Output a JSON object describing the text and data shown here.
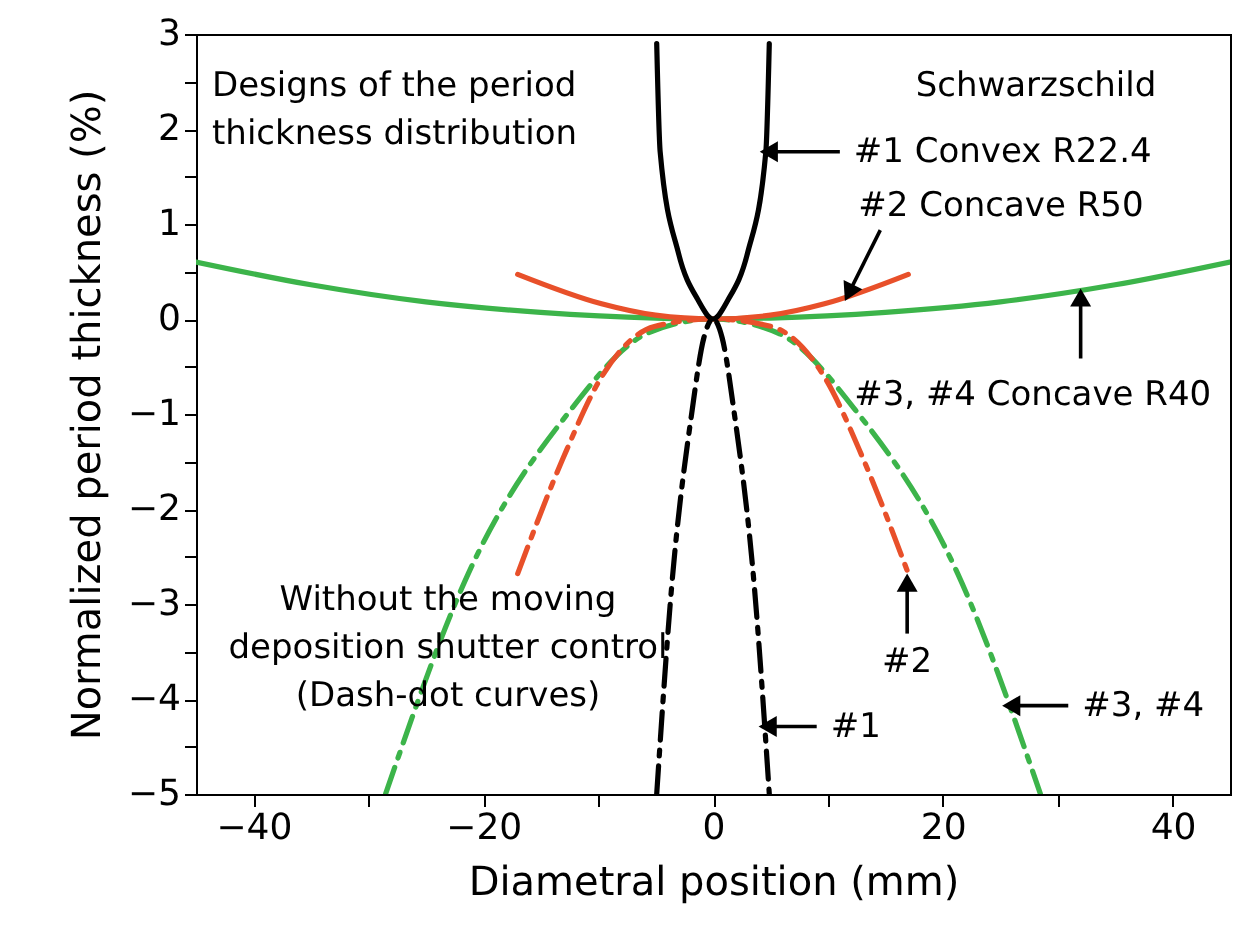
{
  "chart_data": {
    "type": "line",
    "xlabel": "Diametral position (mm)",
    "ylabel": "Normalized period thickness (%)",
    "xlim": [
      -45,
      45
    ],
    "ylim": [
      -5,
      3
    ],
    "xticks": [
      -40,
      {
        "value": -30,
        "label": null
      },
      -20,
      {
        "value": -10,
        "label": null
      },
      0,
      {
        "value": 10,
        "label": null
      },
      20,
      {
        "value": 30,
        "label": null
      },
      40
    ],
    "yticks": [
      -5,
      {
        "value": -4.5,
        "label": null
      },
      -4,
      {
        "value": -3.5,
        "label": null
      },
      -3,
      {
        "value": -2.5,
        "label": null
      },
      -2,
      {
        "value": -1.5,
        "label": null
      },
      -1,
      {
        "value": -0.5,
        "label": null
      },
      0,
      {
        "value": 0.5,
        "label": null
      },
      1,
      {
        "value": 1.5,
        "label": null
      },
      2,
      {
        "value": 2.5,
        "label": null
      },
      3
    ],
    "grid": false,
    "series": [
      {
        "color": "#3cb44a",
        "line_style": "solid",
        "x": [
          -45,
          -35,
          -25,
          -15,
          -5,
          0,
          5,
          15,
          25,
          35,
          45
        ],
        "values": [
          0.6,
          0.36,
          0.18,
          0.07,
          0.01,
          0,
          0.01,
          0.07,
          0.18,
          0.36,
          0.6
        ]
      },
      {
        "color": "#3cb44a",
        "line_style": "dashdot",
        "x": [
          -28.5,
          -21.3,
          -12.6,
          -5.7,
          0,
          5.7,
          12.6,
          21.3,
          28.5
        ],
        "values": [
          -5,
          -2.68,
          -0.99,
          -0.15,
          0,
          -0.15,
          -0.99,
          -2.68,
          -5
        ]
      },
      {
        "color": "#e8502a",
        "line_style": "solid",
        "x": [
          -17,
          -9.7,
          -5,
          0,
          5,
          9.7,
          17
        ],
        "values": [
          0.47,
          0.16,
          0.04,
          0,
          0.04,
          0.16,
          0.47
        ]
      },
      {
        "color": "#e8502a",
        "line_style": "dashdot",
        "x": [
          -17,
          -13.1,
          -9.7,
          -5.1,
          0,
          5.1,
          9.7,
          13.1,
          17
        ],
        "values": [
          -2.68,
          -1.48,
          -0.61,
          -0.08,
          0,
          -0.08,
          -0.61,
          -1.48,
          -2.68
        ]
      },
      {
        "color": "#000000",
        "line_style": "solid",
        "x": [
          -4.9,
          -4.6,
          -3,
          -1.3,
          0,
          1.3,
          3,
          4.6,
          4.9
        ],
        "values": [
          2.9,
          1.76,
          0.69,
          0.2,
          0,
          0.2,
          0.69,
          1.76,
          2.9
        ]
      },
      {
        "color": "#000000",
        "line_style": "dashdot",
        "x": [
          -4.9,
          -3.6,
          -1.85,
          -0.8,
          0,
          0.8,
          1.85,
          3.6,
          4.9
        ],
        "values": [
          -5,
          -2.82,
          -0.99,
          -0.2,
          0,
          -0.2,
          -0.99,
          -2.82,
          -5
        ]
      }
    ],
    "annotations": [
      "Designs of the period\nthickness distribution",
      "Schwarzschild",
      "Without the moving\ndeposition shutter control\n(Dash-dot curves)",
      {
        "text": "#1 Convex R22.4",
        "x": 4.6,
        "y": 1.76
      },
      {
        "text": "#2 Concave R50",
        "x": 11.6,
        "y": 0.22
      },
      {
        "text": "#3, #4 Concave R40",
        "x": 32,
        "y": 0.3
      },
      {
        "text": "#2",
        "x": 16.9,
        "y": -2.68
      },
      {
        "text": "#1",
        "x": 4.5,
        "y": -4.29
      },
      {
        "text": "#3, #4",
        "x": 25.7,
        "y": -4.07
      }
    ]
  }
}
